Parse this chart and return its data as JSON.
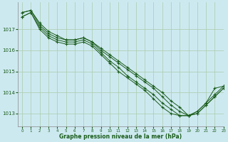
{
  "title": "",
  "xlabel": "Graphe pression niveau de la mer (hPa)",
  "ylabel": "",
  "bg_color": "#cde9f0",
  "grid_color": "#aaccaa",
  "line_color": "#1a5c1a",
  "marker_color": "#1a5c1a",
  "xlim": [
    -0.5,
    23
  ],
  "ylim": [
    1012.4,
    1018.3
  ],
  "yticks": [
    1013,
    1014,
    1015,
    1016,
    1017
  ],
  "xticks": [
    0,
    1,
    2,
    3,
    4,
    5,
    6,
    7,
    8,
    9,
    10,
    11,
    12,
    13,
    14,
    15,
    16,
    17,
    18,
    19,
    20,
    21,
    22,
    23
  ],
  "series": [
    [
      1017.8,
      1017.9,
      1017.3,
      1016.9,
      1016.7,
      1016.5,
      1016.5,
      1016.6,
      1016.4,
      1016.1,
      1015.8,
      1015.5,
      1015.2,
      1014.9,
      1014.6,
      1014.3,
      1014.0,
      1013.6,
      1013.3,
      1012.9,
      1013.1,
      1013.5,
      1014.2,
      1014.3
    ],
    [
      1017.8,
      1017.9,
      1017.2,
      1016.8,
      1016.6,
      1016.5,
      1016.5,
      1016.6,
      1016.4,
      1016.0,
      1015.7,
      1015.4,
      1015.1,
      1014.8,
      1014.5,
      1014.2,
      1013.8,
      1013.4,
      1013.1,
      1012.9,
      1013.1,
      1013.5,
      1013.9,
      1014.3
    ],
    [
      1017.6,
      1017.8,
      1017.1,
      1016.7,
      1016.5,
      1016.4,
      1016.4,
      1016.5,
      1016.3,
      1015.9,
      1015.5,
      1015.2,
      1014.8,
      1014.5,
      1014.2,
      1013.9,
      1013.5,
      1013.2,
      1012.9,
      1012.9,
      1013.0,
      1013.4,
      1013.8,
      1014.2
    ],
    [
      1017.6,
      1017.8,
      1017.0,
      1016.6,
      1016.4,
      1016.3,
      1016.3,
      1016.4,
      1016.2,
      1015.8,
      1015.4,
      1015.0,
      1014.7,
      1014.4,
      1014.1,
      1013.7,
      1013.3,
      1013.0,
      1012.9,
      1012.9,
      1013.0,
      1013.4,
      1013.8,
      1014.2
    ]
  ]
}
